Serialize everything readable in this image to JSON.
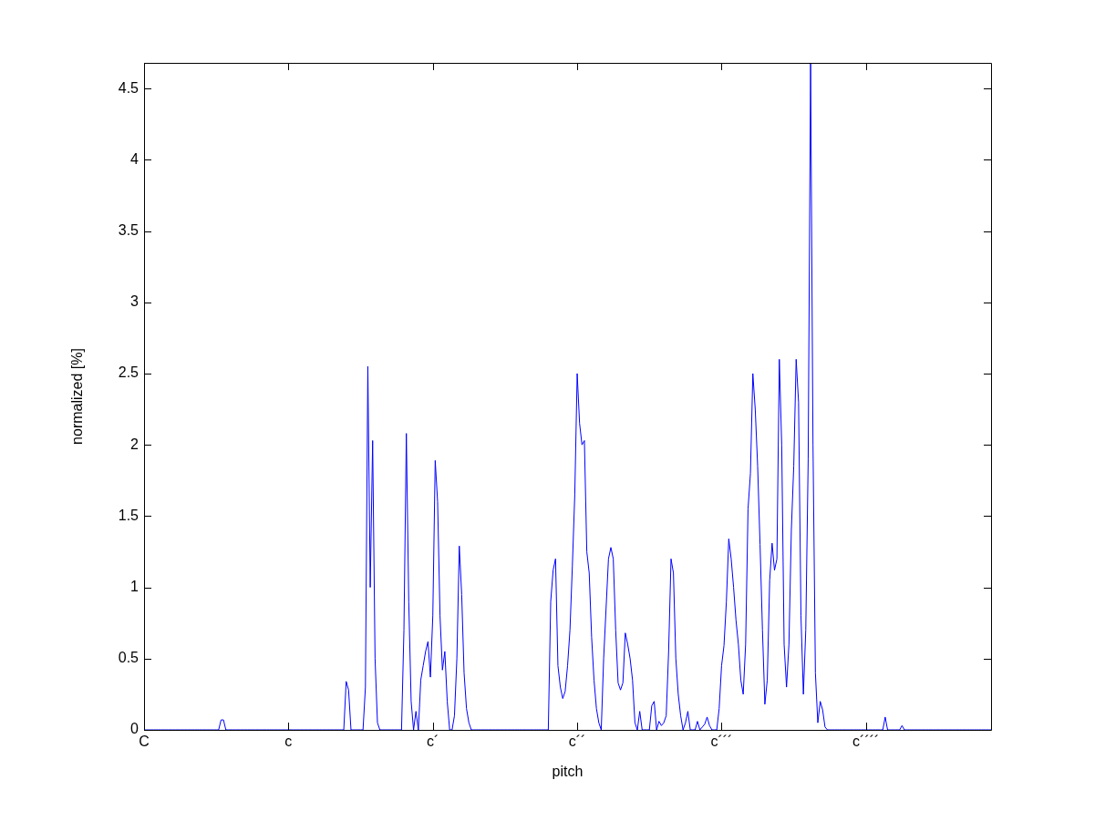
{
  "chart_data": {
    "type": "line",
    "xlabel": "pitch",
    "ylabel": "normalized [%]",
    "ylim": [
      0,
      4.68
    ],
    "yticks": [
      0,
      0.5,
      1,
      1.5,
      2,
      2.5,
      3,
      3.5,
      4,
      4.5
    ],
    "grid": false,
    "legend": false,
    "marker": "none",
    "line_style": "solid",
    "categories": [
      "C",
      null,
      null,
      null,
      null,
      null,
      null,
      null,
      null,
      null,
      null,
      null,
      null,
      null,
      null,
      null,
      null,
      null,
      null,
      null,
      null,
      null,
      null,
      null,
      null,
      null,
      null,
      null,
      null,
      null,
      null,
      null,
      null,
      null,
      null,
      null,
      null,
      null,
      null,
      null,
      null,
      null,
      null,
      null,
      null,
      null,
      null,
      null,
      null,
      null,
      null,
      null,
      null,
      null,
      null,
      null,
      null,
      null,
      null,
      null,
      "c",
      null,
      null,
      null,
      null,
      null,
      null,
      null,
      null,
      null,
      null,
      null,
      null,
      null,
      null,
      null,
      null,
      null,
      null,
      null,
      null,
      null,
      null,
      null,
      null,
      null,
      null,
      null,
      null,
      null,
      null,
      null,
      null,
      null,
      null,
      null,
      null,
      null,
      null,
      null,
      null,
      null,
      null,
      null,
      null,
      null,
      null,
      null,
      null,
      null,
      null,
      null,
      null,
      null,
      null,
      null,
      null,
      null,
      null,
      null,
      "c´",
      null,
      null,
      null,
      null,
      null,
      null,
      null,
      null,
      null,
      null,
      null,
      null,
      null,
      null,
      null,
      null,
      null,
      null,
      null,
      null,
      null,
      null,
      null,
      null,
      null,
      null,
      null,
      null,
      null,
      null,
      null,
      null,
      null,
      null,
      null,
      null,
      null,
      null,
      null,
      null,
      null,
      null,
      null,
      null,
      null,
      null,
      null,
      null,
      null,
      null,
      null,
      null,
      null,
      null,
      null,
      null,
      null,
      null,
      null,
      "c´´",
      null,
      null,
      null,
      null,
      null,
      null,
      null,
      null,
      null,
      null,
      null,
      null,
      null,
      null,
      null,
      null,
      null,
      null,
      null,
      null,
      null,
      null,
      null,
      null,
      null,
      null,
      null,
      null,
      null,
      null,
      null,
      null,
      null,
      null,
      null,
      null,
      null,
      null,
      null,
      null,
      null,
      null,
      null,
      null,
      null,
      null,
      null,
      null,
      null,
      null,
      null,
      null,
      null,
      null,
      null,
      null,
      null,
      null,
      null,
      "c´´´",
      null,
      null,
      null,
      null,
      null,
      null,
      null,
      null,
      null,
      null,
      null,
      null,
      null,
      null,
      null,
      null,
      null,
      null,
      null,
      null,
      null,
      null,
      null,
      null,
      null,
      null,
      null,
      null,
      null,
      null,
      null,
      null,
      null,
      null,
      null,
      null,
      null,
      null,
      null,
      null,
      null,
      null,
      null,
      null,
      null,
      null,
      null,
      null,
      null,
      null,
      null,
      null,
      null,
      null,
      null,
      null,
      null,
      null,
      null,
      "c´´´´",
      null,
      null,
      null,
      null,
      null,
      null,
      null,
      null,
      null,
      null,
      null,
      null,
      null,
      null,
      null,
      null,
      null,
      null,
      null,
      null,
      null,
      null,
      null,
      null,
      null,
      null,
      null,
      null,
      null,
      null,
      null,
      null,
      null,
      null,
      null,
      null,
      null,
      null,
      null,
      null,
      null,
      null,
      null,
      null,
      null,
      null,
      null,
      null,
      null,
      null,
      null,
      null
    ],
    "series": [
      {
        "color": "#0000ff",
        "values": [
          0,
          0,
          0,
          0,
          0,
          0,
          0,
          0,
          0,
          0,
          0,
          0,
          0,
          0,
          0,
          0,
          0,
          0,
          0,
          0,
          0,
          0,
          0,
          0,
          0,
          0,
          0,
          0,
          0,
          0,
          0,
          0,
          0.07,
          0.07,
          0,
          0,
          0,
          0,
          0,
          0,
          0,
          0,
          0,
          0,
          0,
          0,
          0,
          0,
          0,
          0,
          0,
          0,
          0,
          0,
          0,
          0,
          0,
          0,
          0,
          0,
          0,
          0,
          0,
          0,
          0,
          0,
          0,
          0,
          0,
          0,
          0,
          0,
          0,
          0,
          0,
          0,
          0,
          0,
          0,
          0,
          0,
          0,
          0,
          0,
          0.34,
          0.28,
          0,
          0,
          0,
          0,
          0,
          0,
          0.3,
          2.55,
          1.0,
          2.03,
          0.5,
          0.05,
          0,
          0,
          0,
          0,
          0,
          0,
          0,
          0,
          0,
          0,
          0.7,
          2.08,
          0.9,
          0.2,
          0,
          0.13,
          0,
          0.35,
          0.45,
          0.55,
          0.62,
          0.37,
          0.8,
          1.89,
          1.6,
          0.8,
          0.42,
          0.55,
          0.2,
          0,
          0,
          0.1,
          0.5,
          1.29,
          0.95,
          0.4,
          0.15,
          0.05,
          0,
          0,
          0,
          0,
          0,
          0,
          0,
          0,
          0,
          0,
          0,
          0,
          0,
          0,
          0,
          0,
          0,
          0,
          0,
          0,
          0,
          0,
          0,
          0,
          0,
          0,
          0,
          0,
          0,
          0,
          0,
          0,
          0,
          0.9,
          1.12,
          1.2,
          0.45,
          0.3,
          0.22,
          0.27,
          0.45,
          0.7,
          1.15,
          1.65,
          2.5,
          2.15,
          2.0,
          2.03,
          1.25,
          1.1,
          0.65,
          0.35,
          0.15,
          0.05,
          0,
          0.5,
          0.85,
          1.2,
          1.28,
          1.2,
          0.7,
          0.33,
          0.28,
          0.33,
          0.68,
          0.6,
          0.5,
          0.35,
          0.05,
          0,
          0.13,
          0,
          0,
          0,
          0,
          0.17,
          0.2,
          0,
          0.06,
          0.03,
          0.05,
          0.1,
          0.55,
          1.2,
          1.1,
          0.5,
          0.25,
          0.1,
          0,
          0.05,
          0.13,
          0,
          0,
          0,
          0.06,
          0,
          0.02,
          0.04,
          0.09,
          0.03,
          0,
          0,
          0,
          0.15,
          0.45,
          0.59,
          0.9,
          1.34,
          1.2,
          1.0,
          0.77,
          0.6,
          0.35,
          0.25,
          0.6,
          1.55,
          1.8,
          2.5,
          2.25,
          1.85,
          1.3,
          0.7,
          0.18,
          0.35,
          1.05,
          1.31,
          1.12,
          1.2,
          2.6,
          2.0,
          0.6,
          0.3,
          0.6,
          1.4,
          1.85,
          2.6,
          2.3,
          0.8,
          0.25,
          0.7,
          1.9,
          4.68,
          2.0,
          0.4,
          0.05,
          0.2,
          0.14,
          0.02,
          0,
          0,
          0,
          0,
          0,
          0,
          0,
          0,
          0,
          0,
          0,
          0,
          0,
          0,
          0,
          0,
          0,
          0,
          0,
          0,
          0,
          0,
          0,
          0,
          0.09,
          0,
          0,
          0,
          0,
          0,
          0,
          0.03,
          0,
          0,
          0,
          0,
          0,
          0,
          0,
          0,
          0,
          0,
          0,
          0,
          0,
          0,
          0,
          0,
          0,
          0,
          0,
          0,
          0,
          0,
          0,
          0,
          0,
          0,
          0,
          0,
          0,
          0,
          0,
          0,
          0,
          0,
          0,
          0,
          0
        ]
      }
    ]
  }
}
